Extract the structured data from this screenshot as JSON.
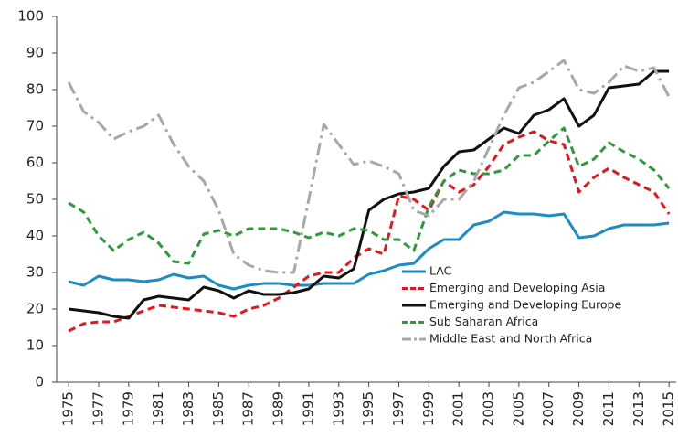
{
  "chart_data": {
    "type": "line",
    "x": [
      1975,
      1976,
      1977,
      1978,
      1979,
      1980,
      1981,
      1982,
      1983,
      1984,
      1985,
      1986,
      1987,
      1988,
      1989,
      1990,
      1991,
      1992,
      1993,
      1994,
      1995,
      1996,
      1997,
      1998,
      1999,
      2000,
      2001,
      2002,
      2003,
      2004,
      2005,
      2006,
      2007,
      2008,
      2009,
      2010,
      2011,
      2012,
      2013,
      2014,
      2015
    ],
    "xlim": [
      1974.2,
      2015.6
    ],
    "xticks": [
      1975,
      1977,
      1979,
      1981,
      1983,
      1985,
      1987,
      1989,
      1991,
      1993,
      1995,
      1997,
      1999,
      2001,
      2003,
      2005,
      2007,
      2009,
      2011,
      2013,
      2015
    ],
    "ylim": [
      0,
      100
    ],
    "yticks": [
      0,
      10,
      20,
      30,
      40,
      50,
      60,
      70,
      80,
      90,
      100
    ],
    "grid": false,
    "legend": "lower right",
    "series": [
      {
        "name": "LAC",
        "color": "#1c8cc4",
        "dash": "solid",
        "values": [
          27.5,
          26.5,
          29,
          28,
          28,
          27.5,
          28,
          29.5,
          28.5,
          29,
          26.5,
          25.5,
          26.5,
          27,
          27,
          26.5,
          26.5,
          27,
          27,
          27,
          29.5,
          30.5,
          32,
          32.5,
          36.5,
          39,
          39,
          43,
          44,
          46.5,
          46,
          46,
          45.5,
          46,
          39.5,
          40,
          42,
          43,
          43,
          43,
          43.5
        ]
      },
      {
        "name": "Emerging and Developing Asia",
        "color": "#e8141c",
        "dash": "dashed",
        "values": [
          14,
          16,
          16.5,
          16.5,
          18,
          19.5,
          21,
          20.5,
          20,
          19.5,
          19,
          18,
          20,
          21,
          23,
          26,
          29,
          30,
          30,
          34,
          36.5,
          35,
          51,
          50,
          47,
          55,
          52,
          54,
          59,
          65,
          67,
          68.5,
          66,
          65,
          52,
          56,
          58.5,
          56,
          54,
          52,
          46
        ]
      },
      {
        "name": "Emerging and Developing Europe",
        "color": "#111111",
        "dash": "solid",
        "values": [
          20,
          19.5,
          19,
          18,
          17.5,
          22.5,
          23.5,
          23,
          22.5,
          26,
          25,
          23,
          25,
          24,
          24,
          24.5,
          25.5,
          29,
          28.5,
          31,
          47,
          50,
          51.5,
          52,
          53,
          59,
          63,
          63.5,
          66.5,
          69.5,
          68,
          73,
          74.5,
          77.5,
          70,
          73,
          80.5,
          81,
          81.5,
          85,
          85
        ]
      },
      {
        "name": "Sub Saharan Africa",
        "color": "#2e9a3a",
        "dash": "dashed",
        "values": [
          49,
          46.5,
          40,
          36,
          39,
          41,
          38,
          33,
          32.5,
          40.5,
          41.5,
          40,
          42,
          42,
          42,
          41,
          39.5,
          41,
          40,
          42,
          41.5,
          39,
          39,
          36,
          48,
          55,
          58,
          57,
          57,
          58,
          62,
          62,
          66,
          69.5,
          59,
          61,
          65.5,
          63,
          61,
          58,
          53
        ]
      },
      {
        "name": "Middle East and North Africa",
        "color": "#a8a8a8",
        "dash": "dashdot",
        "values": [
          82,
          74,
          71,
          66.5,
          68.5,
          70,
          73,
          65,
          59,
          55,
          47,
          35,
          32,
          30.5,
          30,
          30,
          50,
          70.5,
          65,
          59.5,
          60.5,
          59,
          57,
          47,
          45.5,
          50,
          50,
          55,
          64,
          73,
          80.5,
          82,
          85,
          88,
          80,
          79,
          82,
          86.5,
          85,
          86,
          78
        ]
      }
    ]
  }
}
